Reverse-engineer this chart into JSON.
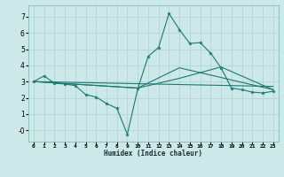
{
  "xlabel": "Humidex (Indice chaleur)",
  "bg_color": "#cce8e8",
  "grid_color": "#b5d5d5",
  "line_color": "#1a7a6e",
  "xlim": [
    -0.5,
    23.5
  ],
  "ylim": [
    -0.7,
    7.7
  ],
  "yticks": [
    0,
    1,
    2,
    3,
    4,
    5,
    6,
    7
  ],
  "x_ticks": [
    0,
    1,
    2,
    3,
    4,
    5,
    6,
    7,
    8,
    9,
    10,
    11,
    12,
    13,
    14,
    15,
    16,
    17,
    18,
    19,
    20,
    21,
    22,
    23
  ],
  "main_x": [
    0,
    1,
    2,
    3,
    4,
    5,
    6,
    7,
    8,
    9,
    10,
    11,
    12,
    13,
    14,
    15,
    16,
    17,
    18,
    19,
    20,
    21,
    22,
    23
  ],
  "main_y": [
    3.0,
    3.35,
    2.9,
    2.85,
    2.75,
    2.2,
    2.05,
    1.65,
    1.35,
    -0.25,
    2.55,
    4.55,
    5.1,
    7.2,
    6.2,
    5.35,
    5.4,
    4.75,
    3.85,
    2.6,
    2.5,
    2.35,
    2.3,
    2.4
  ],
  "trend1_x": [
    0,
    23
  ],
  "trend1_y": [
    3.0,
    2.7
  ],
  "trend2_x": [
    0,
    10,
    14,
    18,
    23
  ],
  "trend2_y": [
    3.0,
    2.6,
    3.2,
    3.9,
    2.5
  ],
  "trend3_x": [
    0,
    10,
    14,
    23
  ],
  "trend3_y": [
    3.0,
    2.6,
    3.85,
    2.5
  ]
}
